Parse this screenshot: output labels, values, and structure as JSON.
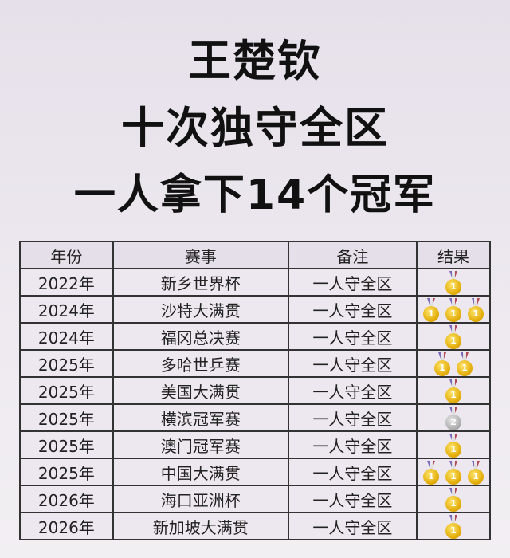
{
  "title": {
    "line1": "王楚钦",
    "line2": "十次独守全区",
    "line3": "一人拿下14个冠军"
  },
  "table": {
    "headers": [
      "年份",
      "赛事",
      "备注",
      "结果"
    ],
    "rows": [
      {
        "year": "2022年",
        "event": "新乡世界杯",
        "note": "一人守全区",
        "medals": [
          "gold"
        ]
      },
      {
        "year": "2024年",
        "event": "沙特大满贯",
        "note": "一人守全区",
        "medals": [
          "gold",
          "gold",
          "gold"
        ]
      },
      {
        "year": "2024年",
        "event": "福冈总决赛",
        "note": "一人守全区",
        "medals": [
          "gold"
        ]
      },
      {
        "year": "2025年",
        "event": "多哈世乒赛",
        "note": "一人守全区",
        "medals": [
          "gold",
          "gold"
        ]
      },
      {
        "year": "2025年",
        "event": "美国大满贯",
        "note": "一人守全区",
        "medals": [
          "gold"
        ]
      },
      {
        "year": "2025年",
        "event": "横滨冠军赛",
        "note": "一人守全区",
        "medals": [
          "silver"
        ]
      },
      {
        "year": "2025年",
        "event": "澳门冠军赛",
        "note": "一人守全区",
        "medals": [
          "gold"
        ]
      },
      {
        "year": "2025年",
        "event": "中国大满贯",
        "note": "一人守全区",
        "medals": [
          "gold",
          "gold",
          "gold"
        ]
      },
      {
        "year": "2026年",
        "event": "海口亚洲杯",
        "note": "一人守全区",
        "medals": [
          "gold"
        ]
      },
      {
        "year": "2026年",
        "event": "新加坡大满贯",
        "note": "一人守全区",
        "medals": [
          "gold"
        ]
      }
    ]
  },
  "medal_labels": {
    "gold": "1",
    "silver": "2"
  },
  "colors": {
    "gold": "#e0a800",
    "silver": "#a8a8a8",
    "border": "#333333"
  }
}
